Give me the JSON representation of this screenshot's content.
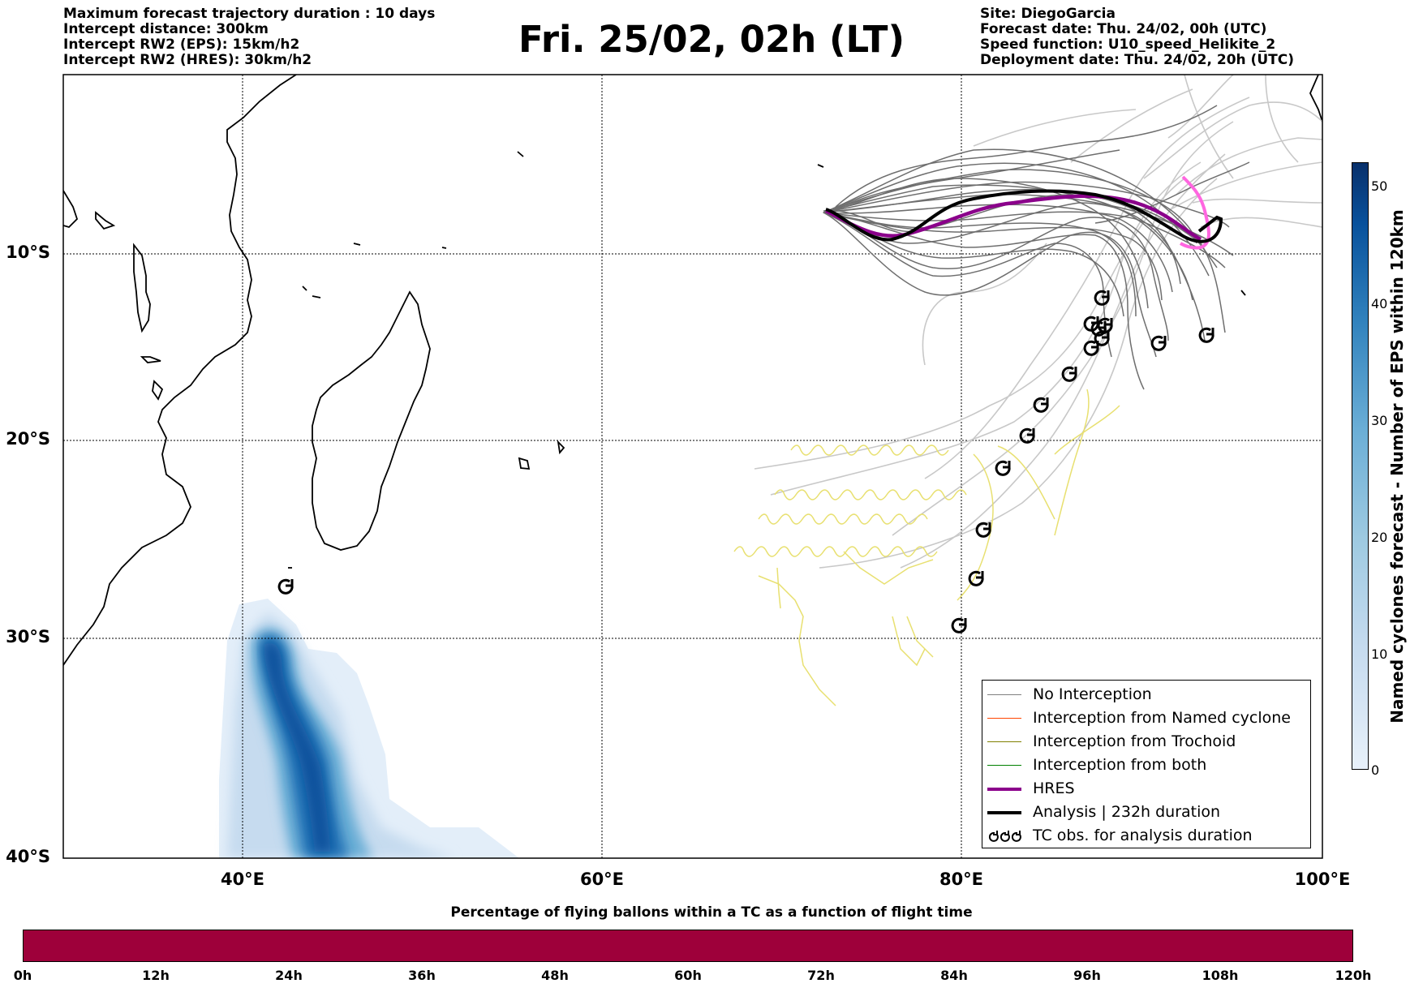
{
  "header": {
    "left_lines": [
      "Maximum forecast trajectory duration : 10 days",
      "Intercept distance: 300km",
      "Intercept RW2 (EPS):  15km/h2",
      "Intercept RW2 (HRES): 30km/h2"
    ],
    "title": "Fri. 25/02, 02h (LT)",
    "right_lines": [
      "Site: DiegoGarcia",
      "Forecast date: Thu. 24/02, 00h (UTC)",
      "Speed function: U10_speed_Helikite_2",
      "Deployment date: Thu. 24/02, 20h (UTC)"
    ]
  },
  "map": {
    "lat_labels": [
      "10°S",
      "20°S",
      "30°S",
      "40°S"
    ],
    "lon_labels": [
      "40°E",
      "60°E",
      "80°E",
      "100°E"
    ],
    "extent": {
      "lon": [
        30,
        100
      ],
      "lat": [
        -40.5,
        -1
      ]
    },
    "gridlines": true,
    "colors": {
      "no_interception": "#808080",
      "named_cyclone": "#ff4500",
      "trochoid": "#808000",
      "both": "#008000",
      "hres": "#8b008b",
      "analysis": "#000000",
      "yellow_tracks": "#e8e070",
      "light_tracks": "#c8c8c8",
      "pink_track": "#ff66e0"
    },
    "tc_obs_icon": "tropical-cyclone-icon"
  },
  "legend": {
    "items": [
      {
        "label": "No Interception",
        "color": "#808080"
      },
      {
        "label": "Interception from Named cyclone",
        "color": "#ff4500"
      },
      {
        "label": "Interception from Trochoid",
        "color": "#808000"
      },
      {
        "label": "Interception from both",
        "color": "#008000"
      },
      {
        "label": "HRES",
        "color": "#8b008b"
      },
      {
        "label": "Analysis | 232h duration",
        "color": "#000000"
      },
      {
        "label": "TC obs. for analysis duration",
        "color": "#000000"
      }
    ]
  },
  "colorbar": {
    "label": "Named cyclones forecast - Number of EPS within 120km",
    "ticks": [
      "0",
      "10",
      "20",
      "30",
      "40",
      "50"
    ],
    "range": [
      0,
      52
    ]
  },
  "flight_bar": {
    "title": "Percentage of flying ballons within a TC as a function of flight time",
    "labels": [
      "0h",
      "12h",
      "24h",
      "36h",
      "48h",
      "60h",
      "72h",
      "84h",
      "96h",
      "108h",
      "120h"
    ],
    "color": "#9e003a"
  }
}
